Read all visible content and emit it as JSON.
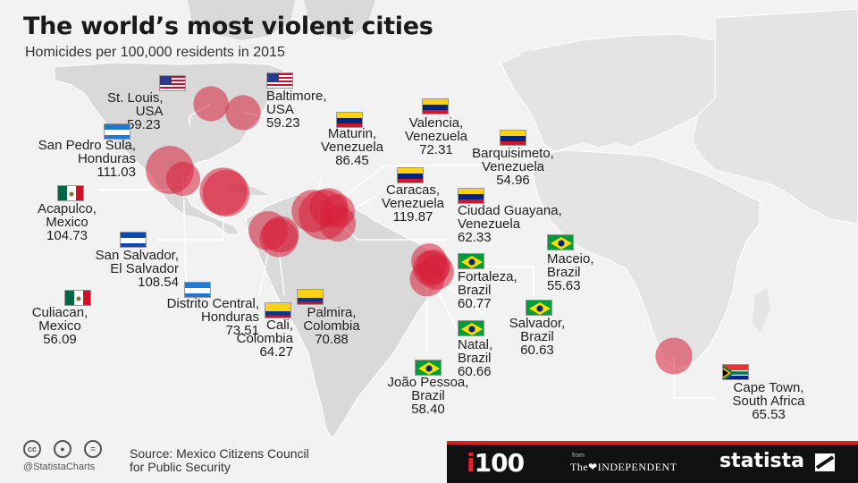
{
  "title": "The world’s most violent cities",
  "subtitle": "Homicides per 100,000 residents in 2015",
  "colors": {
    "bubble": "#d71f3a",
    "land": "#d9d9d9",
    "sea": "#f2f2f2",
    "accent": "#d31f26"
  },
  "cities": [
    {
      "id": "st-louis",
      "name": "St. Louis,",
      "country": "USA",
      "rate": "59.23",
      "value": 59.23,
      "flag": "usa"
    },
    {
      "id": "baltimore",
      "name": "Baltimore,",
      "country": "USA",
      "rate": "59.23",
      "value": 59.23,
      "flag": "usa"
    },
    {
      "id": "san-pedro-sula",
      "name": "San Pedro Sula,",
      "country": "Honduras",
      "rate": "111.03",
      "value": 111.03,
      "flag": "honduras"
    },
    {
      "id": "acapulco",
      "name": "Acapulco,",
      "country": "Mexico",
      "rate": "104.73",
      "value": 104.73,
      "flag": "mexico"
    },
    {
      "id": "san-salvador",
      "name": "San Salvador,",
      "country": "El Salvador",
      "rate": "108.54",
      "value": 108.54,
      "flag": "el-salvador"
    },
    {
      "id": "culiacan",
      "name": "Culiacan,",
      "country": "Mexico",
      "rate": "56.09",
      "value": 56.09,
      "flag": "mexico"
    },
    {
      "id": "distrito-central",
      "name": "Distrito Central,",
      "country": "Honduras",
      "rate": "73.51",
      "value": 73.51,
      "flag": "honduras"
    },
    {
      "id": "cali",
      "name": "Cali,",
      "country": "Colombia",
      "rate": "64.27",
      "value": 64.27,
      "flag": "colombia"
    },
    {
      "id": "palmira",
      "name": "Palmira,",
      "country": "Colombia",
      "rate": "70.88",
      "value": 70.88,
      "flag": "colombia"
    },
    {
      "id": "maturin",
      "name": "Maturin,",
      "country": "Venezuela",
      "rate": "86.45",
      "value": 86.45,
      "flag": "venezuela"
    },
    {
      "id": "valencia",
      "name": "Valencia,",
      "country": "Venezuela",
      "rate": "72.31",
      "value": 72.31,
      "flag": "venezuela"
    },
    {
      "id": "barquisimeto",
      "name": "Barquisimeto,",
      "country": "Venezuela",
      "rate": "54.96",
      "value": 54.96,
      "flag": "venezuela"
    },
    {
      "id": "caracas",
      "name": "Caracas,",
      "country": "Venezuela",
      "rate": "119.87",
      "value": 119.87,
      "flag": "venezuela"
    },
    {
      "id": "ciudad-guayana",
      "name": "Ciudad Guayana,",
      "country": "Venezuela",
      "rate": "62.33",
      "value": 62.33,
      "flag": "venezuela"
    },
    {
      "id": "maceio",
      "name": "Maceio,",
      "country": "Brazil",
      "rate": "55.63",
      "value": 55.63,
      "flag": "brazil"
    },
    {
      "id": "fortaleza",
      "name": "Fortaleza,",
      "country": "Brazil",
      "rate": "60.77",
      "value": 60.77,
      "flag": "brazil"
    },
    {
      "id": "salvador",
      "name": "Salvador,",
      "country": "Brazil",
      "rate": "60.63",
      "value": 60.63,
      "flag": "brazil"
    },
    {
      "id": "natal",
      "name": "Natal,",
      "country": "Brazil",
      "rate": "60.66",
      "value": 60.66,
      "flag": "brazil"
    },
    {
      "id": "joao-pessoa",
      "name": "João Pessoa,",
      "country": "Brazil",
      "rate": "58.40",
      "value": 58.4,
      "flag": "brazil"
    },
    {
      "id": "cape-town",
      "name": "Cape Town,",
      "country": "South Africa",
      "rate": "65.53",
      "value": 65.53,
      "flag": "south-africa"
    }
  ],
  "footer": {
    "handle": "@StatistaCharts",
    "source_line1": "Source: Mexico Citizens Council",
    "source_line2": "for Public Security",
    "cc_icons": [
      "cc-icon",
      "attribution-icon",
      "no-derivatives-icon"
    ],
    "i100_i": "i",
    "i100_rest": "100",
    "from": "from",
    "independent": "The❤INDEPENDENT",
    "statista": "statista"
  }
}
